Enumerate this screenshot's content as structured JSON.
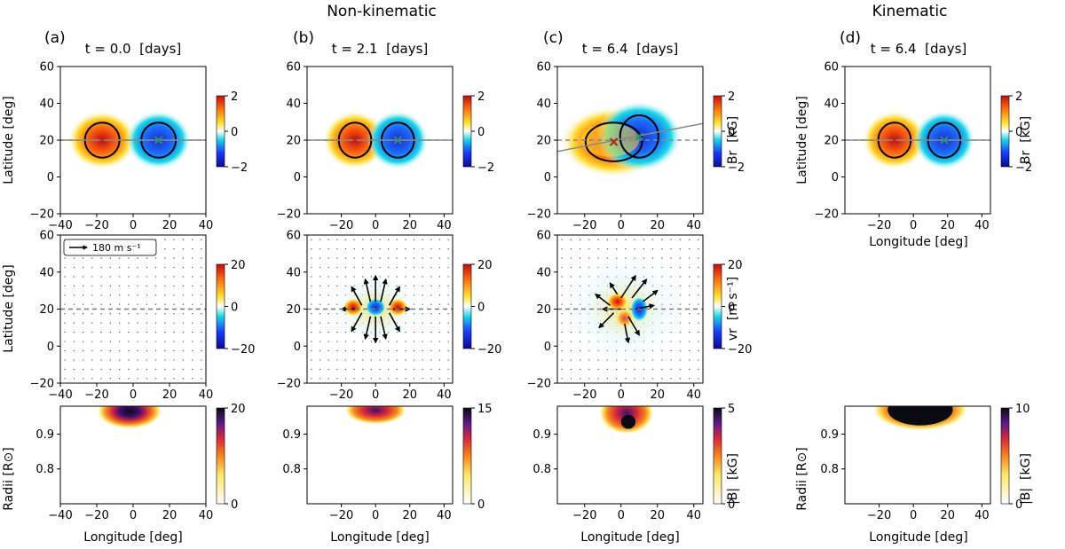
{
  "figure": {
    "group_labels": [
      "Non-kinematic",
      "Kinematic"
    ],
    "panel_letters": [
      "(a)",
      "(b)",
      "(c)",
      "(d)"
    ],
    "times": [
      "t = 0.0  [days]",
      "t = 2.1  [days]",
      "t = 6.4  [days]",
      "t = 6.4  [days]"
    ]
  },
  "labels": {
    "latitude": "Latitude [deg]",
    "longitude": "Longitude [deg]",
    "radii": "Radii [R⊙]",
    "br": "Br  [kG]",
    "vr": "vr  [m s⁻¹]",
    "absb": "|B|  [kG]",
    "arrow_key": "180 m s⁻¹"
  },
  "chart_data": [
    {
      "type": "heatmap",
      "row": "Br",
      "panel": "a",
      "xlim": [
        -40,
        40
      ],
      "ylim": [
        -20,
        60
      ],
      "xticks": [
        -40,
        -20,
        0,
        20,
        40
      ],
      "yticks": [
        -20,
        0,
        20,
        40,
        60
      ],
      "colorbar": {
        "min": -2,
        "max": 2,
        "ticks": [
          2,
          0,
          -2
        ]
      },
      "spots": [
        {
          "lon": -17,
          "lat": 20,
          "polarity": 1,
          "marker": "x"
        },
        {
          "lon": 14,
          "lat": 20,
          "polarity": -1,
          "marker": "x"
        }
      ],
      "tilt_line": {
        "lat0": 20,
        "slope": 0
      }
    },
    {
      "type": "heatmap",
      "row": "Br",
      "panel": "b",
      "xlim": [
        -40,
        45
      ],
      "ylim": [
        -20,
        60
      ],
      "xticks": [
        -20,
        0,
        20,
        40
      ],
      "yticks": [
        -20,
        0,
        20,
        40,
        60
      ],
      "colorbar": {
        "min": -2,
        "max": 2,
        "ticks": [
          2,
          0,
          -2
        ]
      },
      "spots": [
        {
          "lon": -12,
          "lat": 20,
          "polarity": 1,
          "marker": "x"
        },
        {
          "lon": 13,
          "lat": 20,
          "polarity": -1,
          "marker": "x"
        }
      ],
      "tilt_line": {
        "lat0": 20,
        "slope": 0
      }
    },
    {
      "type": "heatmap",
      "row": "Br",
      "panel": "c",
      "xlim": [
        -35,
        45
      ],
      "ylim": [
        -20,
        60
      ],
      "xticks": [
        -20,
        0,
        20,
        40
      ],
      "yticks": [
        -20,
        0,
        20,
        40,
        60
      ],
      "colorbar": {
        "min": -2,
        "max": 2,
        "ticks": [
          2,
          0,
          -2
        ],
        "label": "Br  [kG]"
      },
      "spots": [
        {
          "lon": -4,
          "lat": 19,
          "polarity": 1,
          "marker": "x"
        },
        {
          "lon": 10,
          "lat": 22,
          "polarity": -1,
          "marker": "x"
        }
      ],
      "tilt_line": {
        "lat0": 20.5,
        "slope": 0.19
      }
    },
    {
      "type": "heatmap",
      "row": "Br",
      "panel": "d",
      "xlim": [
        -40,
        45
      ],
      "ylim": [
        -20,
        60
      ],
      "xticks": [
        -20,
        0,
        20,
        40
      ],
      "yticks": [
        -20,
        0,
        20,
        40,
        60
      ],
      "colorbar": {
        "min": -2,
        "max": 2,
        "ticks": [
          2,
          0,
          -2
        ],
        "label": "Br  [kG]"
      },
      "spots": [
        {
          "lon": -11,
          "lat": 20,
          "polarity": 1,
          "marker": "x"
        },
        {
          "lon": 18,
          "lat": 20,
          "polarity": -1,
          "marker": "x"
        }
      ],
      "tilt_line": {
        "lat0": 20,
        "slope": 0
      }
    },
    {
      "type": "heatmap",
      "row": "vr",
      "panel": "a",
      "xlim": [
        -40,
        40
      ],
      "ylim": [
        -20,
        60
      ],
      "xticks": [
        -40,
        -20,
        0,
        20,
        40
      ],
      "yticks": [
        -20,
        0,
        20,
        40,
        60
      ],
      "colorbar": {
        "min": -20,
        "max": 20,
        "ticks": [
          20,
          0,
          -20
        ]
      },
      "arrow_key": "180 m s⁻¹"
    },
    {
      "type": "heatmap",
      "row": "vr",
      "panel": "b",
      "xlim": [
        -40,
        45
      ],
      "ylim": [
        -20,
        60
      ],
      "xticks": [
        -20,
        0,
        20,
        40
      ],
      "yticks": [
        -20,
        0,
        20,
        40,
        60
      ],
      "colorbar": {
        "min": -20,
        "max": 20,
        "ticks": [
          20,
          0,
          -20
        ]
      }
    },
    {
      "type": "heatmap",
      "row": "vr",
      "panel": "c",
      "xlim": [
        -35,
        45
      ],
      "ylim": [
        -20,
        60
      ],
      "xticks": [
        -20,
        0,
        20,
        40
      ],
      "yticks": [
        -20,
        0,
        20,
        40,
        60
      ],
      "colorbar": {
        "min": -20,
        "max": 20,
        "ticks": [
          20,
          0,
          -20
        ],
        "label": "vr  [m s⁻¹]"
      }
    },
    {
      "type": "heatmap",
      "row": "absB",
      "panel": "a",
      "xlim": [
        -40,
        40
      ],
      "ylim": [
        0.7,
        0.98
      ],
      "xticks": [
        -40,
        -20,
        0,
        20,
        40
      ],
      "yticks": [
        0.8,
        0.9
      ],
      "colorbar": {
        "min": 0,
        "max": 20,
        "ticks": [
          20,
          0
        ]
      }
    },
    {
      "type": "heatmap",
      "row": "absB",
      "panel": "b",
      "xlim": [
        -40,
        45
      ],
      "ylim": [
        0.7,
        0.98
      ],
      "xticks": [
        -20,
        0,
        20,
        40
      ],
      "yticks": [
        0.8,
        0.9
      ],
      "colorbar": {
        "min": 0,
        "max": 15,
        "ticks": [
          15,
          0
        ]
      }
    },
    {
      "type": "heatmap",
      "row": "absB",
      "panel": "c",
      "xlim": [
        -35,
        45
      ],
      "ylim": [
        0.7,
        0.98
      ],
      "xticks": [
        -20,
        0,
        20,
        40
      ],
      "yticks": [
        0.8,
        0.9
      ],
      "colorbar": {
        "min": 0,
        "max": 5,
        "ticks": [
          5,
          0
        ],
        "label": "|B|  [kG]"
      }
    },
    {
      "type": "heatmap",
      "row": "absB",
      "panel": "d",
      "xlim": [
        -40,
        45
      ],
      "ylim": [
        0.7,
        0.98
      ],
      "xticks": [
        -20,
        0,
        20,
        40
      ],
      "yticks": [
        0.8,
        0.9
      ],
      "colorbar": {
        "min": 0,
        "max": 10,
        "ticks": [
          10,
          0
        ],
        "label": "|B|  [kG]"
      }
    }
  ]
}
